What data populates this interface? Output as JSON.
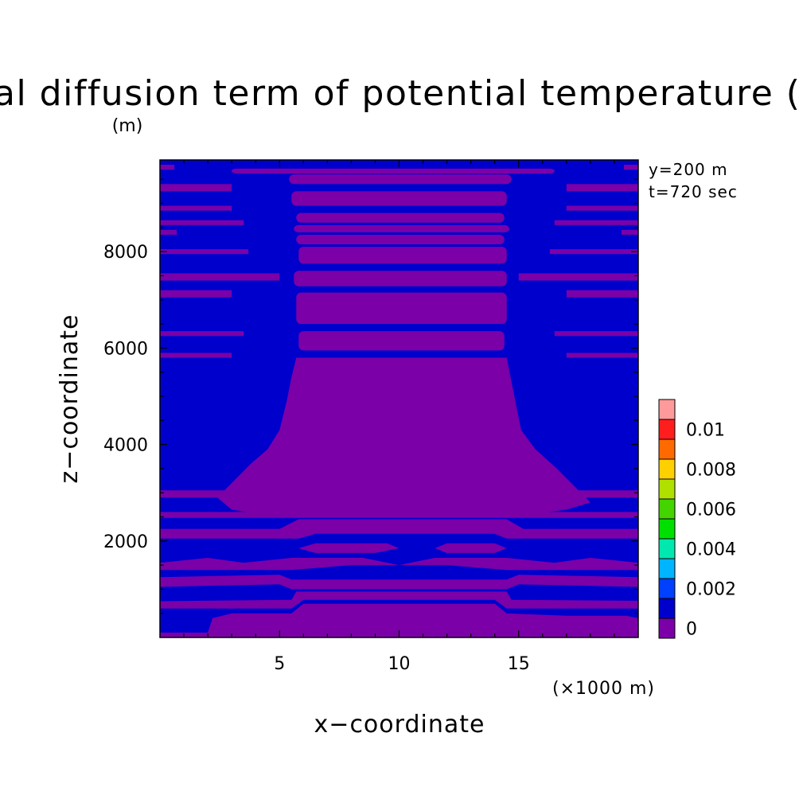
{
  "chart_data": {
    "type": "heatmap",
    "title": "al diffusion term of potential temperature (",
    "xlabel": "x−coordinate",
    "ylabel": "z−coordinate",
    "x_unit_label": "(×1000 m)",
    "y_unit_label": "(m)",
    "xlim": [
      0,
      20
    ],
    "ylim": [
      0,
      9900
    ],
    "x_ticks": [
      5,
      10,
      15
    ],
    "y_ticks": [
      2000,
      4000,
      6000,
      8000
    ],
    "x_tick_labels": [
      "5",
      "10",
      "15"
    ],
    "y_tick_labels": [
      "2000",
      "4000",
      "6000",
      "8000"
    ],
    "annotations": [
      "y=200 m",
      "t=720 sec"
    ],
    "colorbar": {
      "levels": [
        0,
        0.001,
        0.002,
        0.003,
        0.004,
        0.005,
        0.006,
        0.007,
        0.008,
        0.009,
        0.01,
        0.011
      ],
      "colors": [
        "#7b00a8",
        "#0000cc",
        "#0040ff",
        "#00b4ff",
        "#00e8b0",
        "#00e000",
        "#44d400",
        "#b0e000",
        "#ffd000",
        "#ff6a00",
        "#ff1e1e",
        "#ff9a9a"
      ],
      "tick_labels": [
        "0",
        "0.002",
        "0.004",
        "0.006",
        "0.008",
        "0.01"
      ],
      "tick_values": [
        0,
        0.002,
        0.004,
        0.006,
        0.008,
        0.01
      ]
    },
    "background_level_color": "#0000cc",
    "field_description_colors": {
      "low": "#7b00a8",
      "high": "#0000cc"
    },
    "regions_lowest_class": [
      {
        "name": "central-dome",
        "z_top_center": 5850
      },
      {
        "name": "band-6100",
        "x": [
          5.8,
          14.4
        ],
        "z": [
          5950,
          6350
        ]
      },
      {
        "name": "band-6800",
        "x": [
          5.7,
          14.5
        ],
        "z": [
          6500,
          7150
        ]
      },
      {
        "name": "band-7400",
        "x": [
          5.6,
          14.5
        ],
        "z": [
          7280,
          7600
        ]
      },
      {
        "name": "band-7950",
        "x": [
          5.8,
          14.5
        ],
        "z": [
          7750,
          8100
        ]
      },
      {
        "name": "band-8200",
        "x": [
          5.7,
          14.4
        ],
        "z": [
          8150,
          8350
        ]
      },
      {
        "name": "band-8450",
        "x": [
          5.6,
          14.6
        ],
        "z": [
          8400,
          8550
        ]
      },
      {
        "name": "band-8700",
        "x": [
          5.7,
          14.4
        ],
        "z": [
          8600,
          8800
        ]
      },
      {
        "name": "band-9100",
        "x": [
          5.5,
          14.5
        ],
        "z": [
          8950,
          9250
        ]
      },
      {
        "name": "band-9500",
        "x": [
          5.4,
          14.7
        ],
        "z": [
          9400,
          9600
        ]
      },
      {
        "name": "band-9700",
        "x": [
          3.0,
          16.5
        ],
        "z": [
          9620,
          9720
        ]
      }
    ]
  }
}
